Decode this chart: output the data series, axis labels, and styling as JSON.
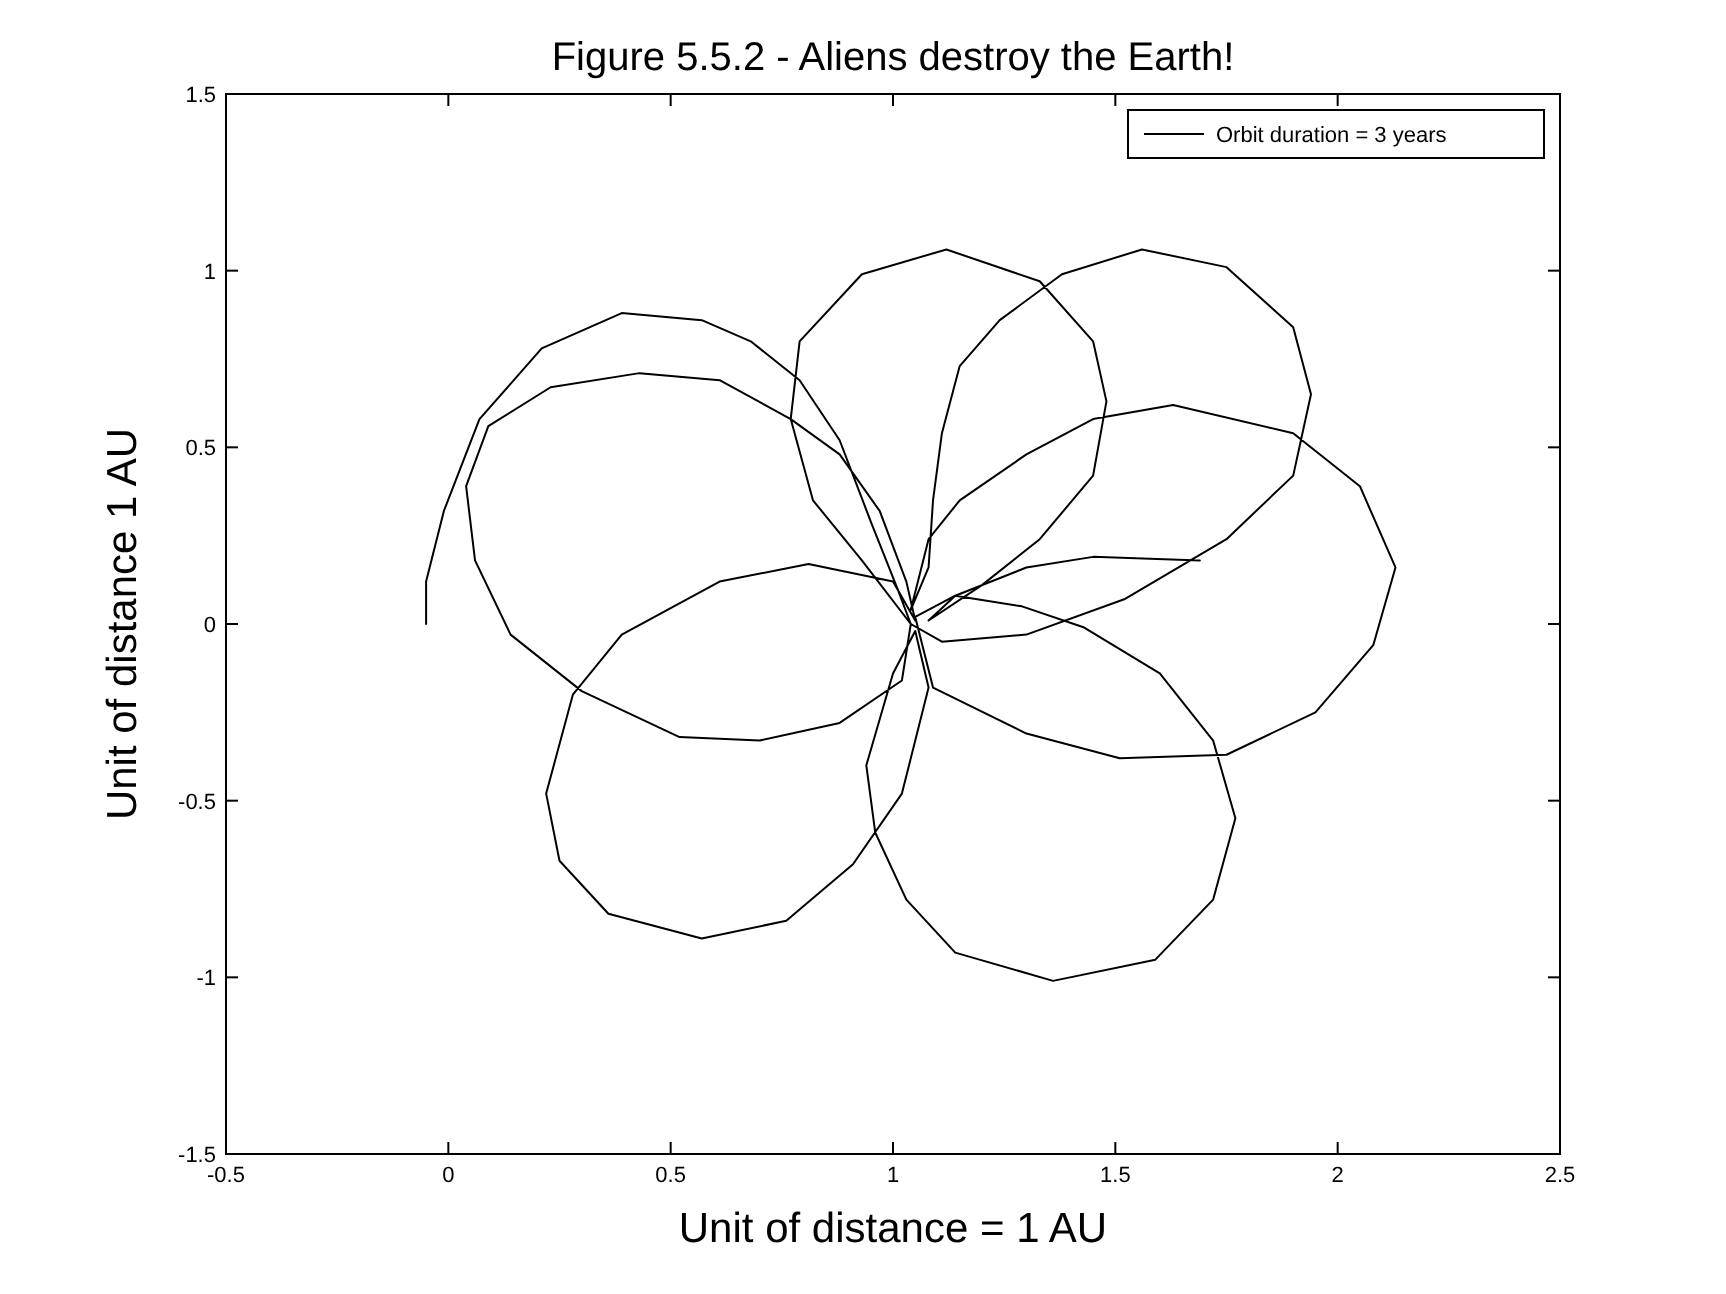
{
  "chart_data": {
    "type": "line",
    "title": "Figure 5.5.2 - Aliens destroy the Earth!",
    "xlabel": "Unit of distance = 1 AU",
    "ylabel": "Unit of distance 1 AU",
    "xlim": [
      -0.5,
      2.5
    ],
    "ylim": [
      -1.5,
      1.5
    ],
    "xticks": [
      -0.5,
      0,
      0.5,
      1,
      1.5,
      2,
      2.5
    ],
    "yticks": [
      -1.5,
      -1,
      -0.5,
      0,
      0.5,
      1,
      1.5
    ],
    "grid": false,
    "legend": "top right",
    "marker": "none",
    "line_style": "solid",
    "series": [
      {
        "name": "Orbit duration = 3 years",
        "color": "#000000",
        "x": [
          -0.05,
          -0.05,
          -0.01,
          0.07,
          0.21,
          0.39,
          0.57,
          0.68,
          0.79,
          0.88,
          0.95,
          1.01,
          1.04,
          1.02,
          0.88,
          0.7,
          0.52,
          0.3,
          0.14,
          0.06,
          0.04,
          0.09,
          0.23,
          0.43,
          0.61,
          0.77,
          0.88,
          0.97,
          1.03,
          1.05,
          1.0,
          0.81,
          0.61,
          0.39,
          0.28,
          0.22,
          0.25,
          0.36,
          0.57,
          0.76,
          0.91,
          1.02,
          1.08,
          1.05,
          1.0,
          0.94,
          0.96,
          1.03,
          1.14,
          1.36,
          1.59,
          1.72,
          1.77,
          1.72,
          1.6,
          1.43,
          1.29,
          1.14,
          1.05,
          1.09,
          1.3,
          1.51,
          1.75,
          1.95,
          2.08,
          2.13,
          2.05,
          1.9,
          1.63,
          1.45,
          1.3,
          1.15,
          1.08,
          1.04,
          1.08,
          1.09,
          1.11,
          1.15,
          1.24,
          1.38,
          1.56,
          1.75,
          1.9,
          1.94,
          1.9,
          1.75,
          1.52,
          1.3,
          1.11,
          1.04,
          0.93,
          0.82,
          0.77,
          0.79,
          0.93,
          1.12,
          1.33,
          1.45,
          1.48,
          1.45,
          1.33,
          1.2,
          1.08,
          1.14,
          1.3,
          1.45,
          1.69
        ],
        "values": [
          0,
          0.12,
          0.32,
          0.58,
          0.78,
          0.88,
          0.86,
          0.8,
          0.69,
          0.52,
          0.29,
          0.1,
          0.0,
          -0.16,
          -0.28,
          -0.33,
          -0.32,
          -0.19,
          -0.03,
          0.18,
          0.39,
          0.56,
          0.67,
          0.71,
          0.69,
          0.58,
          0.48,
          0.32,
          0.12,
          0.01,
          0.12,
          0.17,
          0.12,
          -0.03,
          -0.2,
          -0.48,
          -0.67,
          -0.82,
          -0.89,
          -0.84,
          -0.68,
          -0.48,
          -0.18,
          -0.02,
          -0.14,
          -0.4,
          -0.59,
          -0.78,
          -0.93,
          -1.01,
          -0.95,
          -0.78,
          -0.55,
          -0.33,
          -0.14,
          -0.01,
          0.05,
          0.08,
          0.02,
          -0.18,
          -0.31,
          -0.38,
          -0.37,
          -0.25,
          -0.06,
          0.16,
          0.39,
          0.54,
          0.62,
          0.58,
          0.48,
          0.35,
          0.24,
          0.04,
          0.16,
          0.35,
          0.54,
          0.73,
          0.86,
          0.99,
          1.06,
          1.01,
          0.84,
          0.65,
          0.42,
          0.24,
          0.07,
          -0.03,
          -0.05,
          0.0,
          0.18,
          0.35,
          0.58,
          0.8,
          0.99,
          1.06,
          0.97,
          0.8,
          0.63,
          0.42,
          0.24,
          0.11,
          0.01,
          0.08,
          0.16,
          0.19,
          0.18
        ]
      }
    ]
  }
}
